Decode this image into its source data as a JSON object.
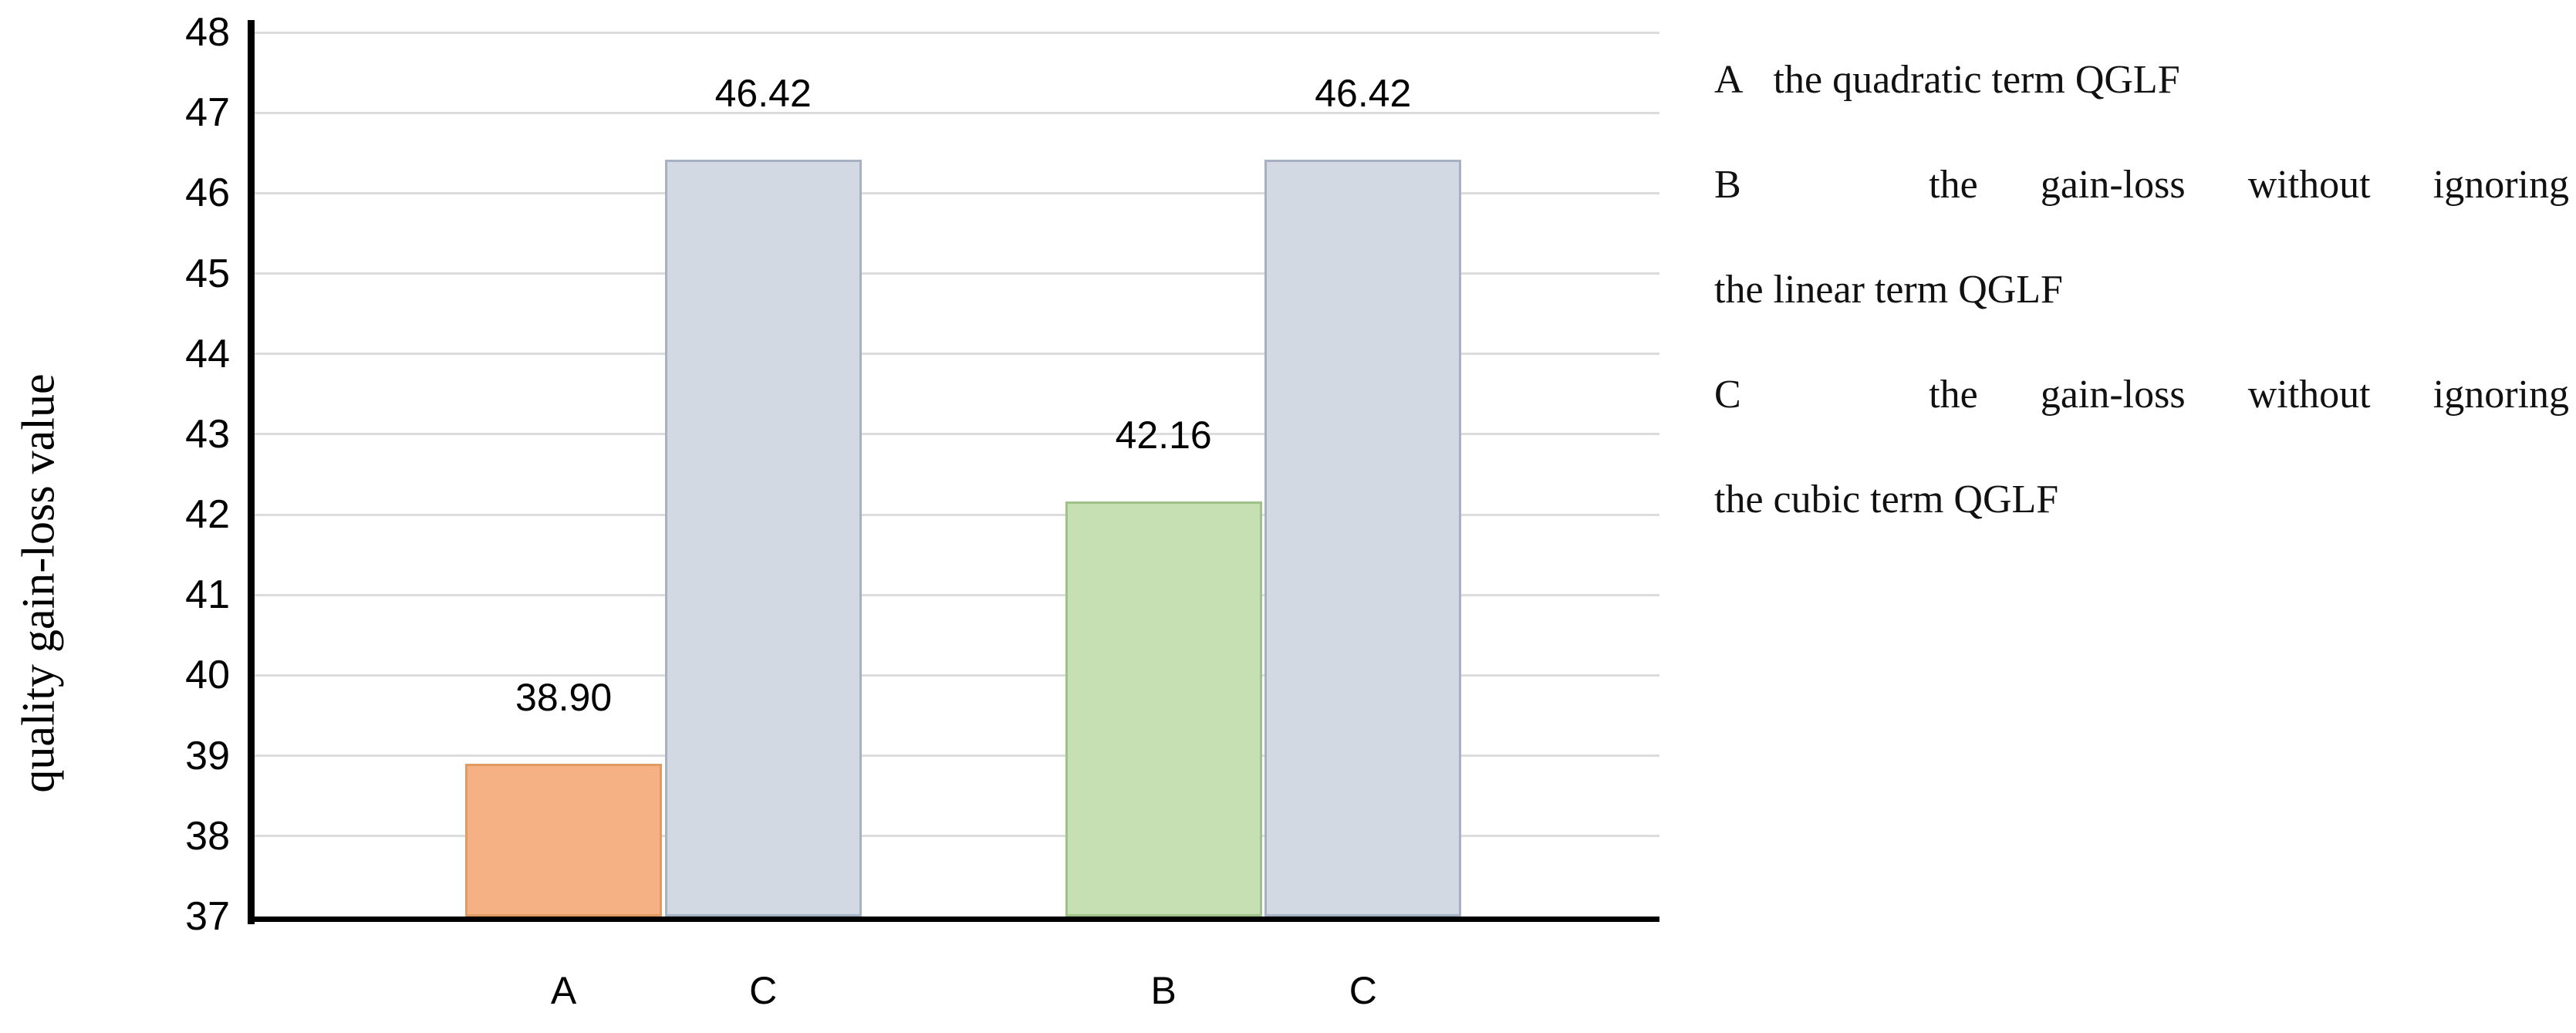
{
  "chart_data": {
    "type": "bar",
    "title": "",
    "xlabel": "",
    "ylabel": "quality gain-loss value",
    "ylim": [
      37,
      48
    ],
    "yticks": [
      48,
      47,
      46,
      45,
      44,
      43,
      42,
      41,
      40,
      39,
      38,
      37
    ],
    "grid": true,
    "categories": [
      "A",
      "C",
      "B",
      "C"
    ],
    "bars": [
      {
        "category": "A",
        "value": 38.9,
        "value_label": "38.90",
        "fill": "#f5b183",
        "border": "#e09a62"
      },
      {
        "category": "C",
        "value": 46.42,
        "value_label": "46.42",
        "fill": "#d3d9e3",
        "border": "#a7b1c4"
      },
      {
        "category": "B",
        "value": 42.16,
        "value_label": "42.16",
        "fill": "#c6e0b4",
        "border": "#9fc386"
      },
      {
        "category": "C",
        "value": 46.42,
        "value_label": "46.42",
        "fill": "#d3d9e3",
        "border": "#a7b1c4"
      }
    ],
    "legend_position": "right",
    "legend_entries": [
      "A  the quadratic term QGLF",
      "B  the gain-loss without ignoring the linear term QGLF",
      "C  the gain-loss without ignoring the cubic term QGLF"
    ]
  },
  "legend": {
    "lines": [
      {
        "text": "A   the quadratic term QGLF",
        "justify": false
      },
      {
        "text": "B   the gain-loss without ignoring",
        "justify": true
      },
      {
        "text": "the linear term QGLF",
        "justify": false
      },
      {
        "text": "C   the gain-loss without ignoring",
        "justify": true
      },
      {
        "text": "the cubic term QGLF",
        "justify": false
      }
    ]
  }
}
